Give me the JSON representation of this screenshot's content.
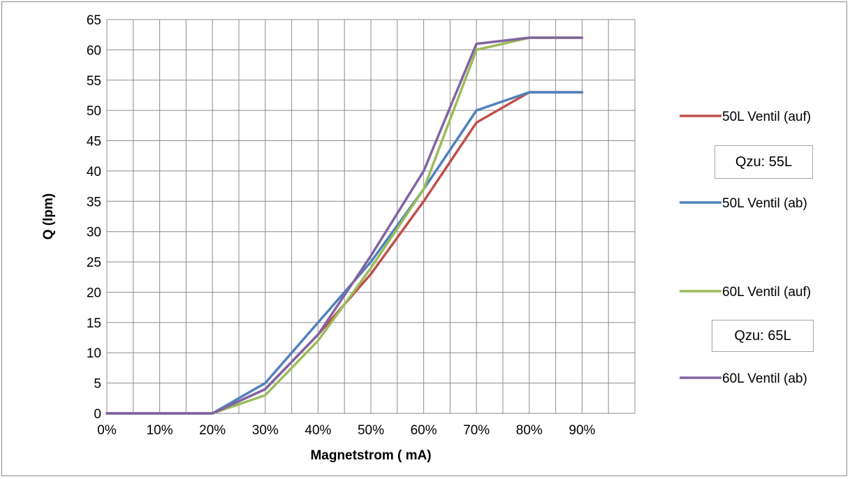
{
  "chart_data": {
    "type": "line",
    "title": "",
    "xlabel": "Magnetstrom ( mA)",
    "ylabel": "Q (lpm)",
    "x_categories": [
      "0%",
      "10%",
      "20%",
      "30%",
      "40%",
      "50%",
      "60%",
      "70%",
      "80%",
      "90%"
    ],
    "x_percent_values": [
      0,
      10,
      20,
      30,
      40,
      50,
      60,
      70,
      80,
      90
    ],
    "x_grid_divisions": 20,
    "ylim": [
      0,
      65
    ],
    "ytick_step": 5,
    "grid": true,
    "legend_position": "right",
    "series": [
      {
        "name": "50L Ventil (auf)",
        "color": "#c0504d",
        "values": [
          0,
          0,
          0,
          4,
          13,
          23,
          35,
          48,
          53,
          53
        ]
      },
      {
        "name": "50L Ventil (ab)",
        "color": "#4f81bd",
        "values": [
          0,
          0,
          0,
          5,
          15,
          25,
          37,
          50,
          53,
          53
        ]
      },
      {
        "name": "60L Ventil (auf)",
        "color": "#9bbb59",
        "values": [
          0,
          0,
          0,
          3,
          12,
          24,
          37,
          60,
          62,
          62
        ]
      },
      {
        "name": "60L Ventil (ab)",
        "color": "#8064a2",
        "values": [
          0,
          0,
          0,
          4,
          13,
          26,
          40,
          61,
          62,
          62
        ]
      }
    ],
    "annotations": [
      {
        "text": "Qzu: 55L"
      },
      {
        "text": "Qzu: 65L"
      }
    ]
  }
}
